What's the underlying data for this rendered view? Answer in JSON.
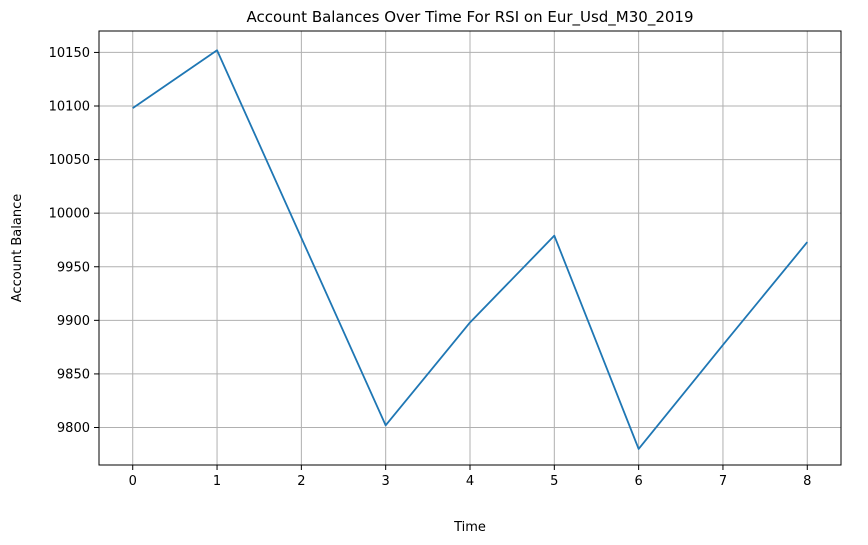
{
  "chart_data": {
    "type": "line",
    "title": "Account Balances Over Time For RSI on Eur_Usd_M30_2019",
    "xlabel": "Time",
    "ylabel": "Account Balance",
    "x": [
      0,
      1,
      2,
      3,
      4,
      5,
      6,
      7,
      8
    ],
    "series": [
      {
        "values": [
          10098,
          10152,
          9977,
          9802,
          9898,
          9979,
          9780,
          9877,
          9973
        ],
        "color": "#1f77b4"
      }
    ],
    "xlim": [
      -0.4,
      8.4
    ],
    "ylim": [
      9765,
      10170
    ],
    "xticks": [
      0,
      1,
      2,
      3,
      4,
      5,
      6,
      7,
      8
    ],
    "yticks": [
      9800,
      9850,
      9900,
      9950,
      10000,
      10050,
      10100,
      10150
    ],
    "grid": true
  }
}
